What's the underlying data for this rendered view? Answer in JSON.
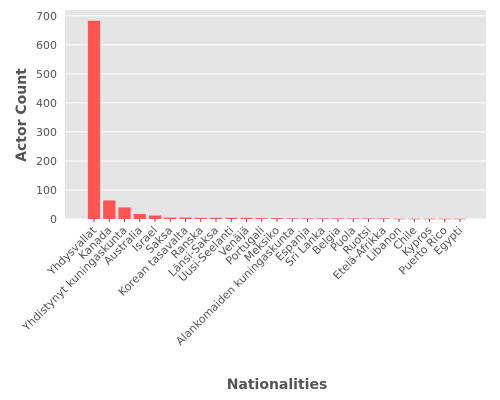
{
  "chart_data": {
    "type": "bar",
    "title": "",
    "xlabel": "Nationalities",
    "ylabel": "Actor Count",
    "ylim": [
      0,
      720
    ],
    "yticks": [
      0,
      100,
      200,
      300,
      400,
      500,
      600,
      700
    ],
    "grid": true,
    "bar_color": "#ff5555",
    "background_color": "#e5e5e5",
    "categories": [
      "Yhdysvallat",
      "Kanada",
      "Yhdistynyt kuningaskunta",
      "Australia",
      "Israel",
      "Saksa",
      "Korean tasavalta",
      "Ranska",
      "Länsi-Saksa",
      "Uusi-Seelanti",
      "Venäjä",
      "Portugali",
      "Meksiko",
      "Alankomaiden kuningaskunta",
      "Espanja",
      "Sri Lanka",
      "Belgia",
      "Puola",
      "Ruotsi",
      "Etelä-Afrikka",
      "Libanon",
      "Chile",
      "Kypros",
      "Puerto Rico",
      "Egypti"
    ],
    "values": [
      683,
      64,
      40,
      17,
      12,
      5,
      5,
      4,
      4,
      4,
      4,
      3,
      3,
      2,
      2,
      2,
      2,
      2,
      2,
      2,
      1,
      1,
      1,
      1,
      1
    ]
  }
}
